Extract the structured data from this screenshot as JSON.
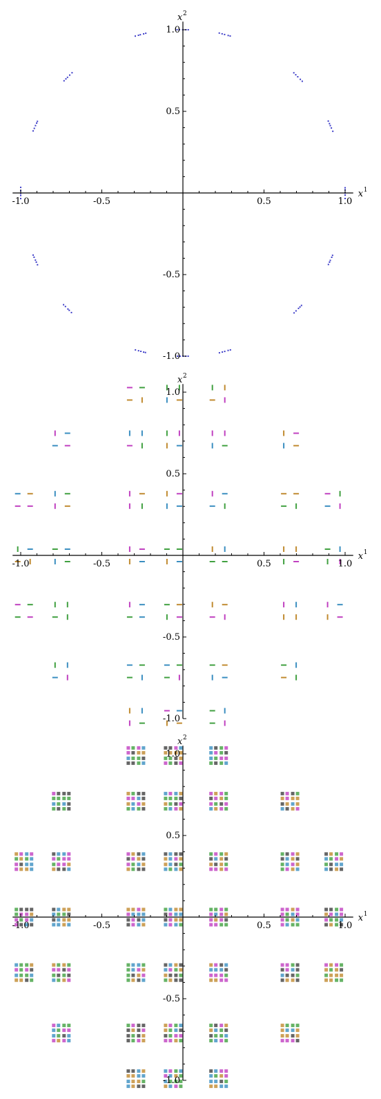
{
  "chart_data": [
    {
      "type": "scatter",
      "panel": 1,
      "title": "",
      "xlabel": "x",
      "xlabel_sup": "1",
      "ylabel": "x",
      "ylabel_sup": "2",
      "xlim": [
        -1.05,
        1.05
      ],
      "ylim": [
        -1.0,
        1.05
      ],
      "xticks": [
        -1.0,
        -0.5,
        0.5,
        1.0
      ],
      "xtick_labels": [
        "-1.0",
        "-0.5",
        "0.5",
        "1.0"
      ],
      "yticks": [
        -1.0,
        -0.5,
        0.5,
        1.0
      ],
      "ytick_labels": [
        "-1.0",
        "-0.5",
        "0.5",
        "1.0"
      ],
      "grid": false,
      "legend": "none",
      "colors": [
        "#3c3cc8"
      ],
      "description_key": "circle",
      "clusters": [
        {
          "x": 0.0,
          "y": 1.0
        },
        {
          "x": 0.26,
          "y": 0.97
        },
        {
          "x": -0.26,
          "y": 0.97
        },
        {
          "x": 0.71,
          "y": 0.71
        },
        {
          "x": -0.71,
          "y": 0.71
        },
        {
          "x": 0.91,
          "y": 0.41
        },
        {
          "x": -0.91,
          "y": 0.41
        },
        {
          "x": 1.0,
          "y": 0.0
        },
        {
          "x": -1.0,
          "y": 0.0
        },
        {
          "x": 0.91,
          "y": -0.41
        },
        {
          "x": -0.91,
          "y": -0.41
        },
        {
          "x": 0.71,
          "y": -0.71
        },
        {
          "x": -0.71,
          "y": -0.71
        },
        {
          "x": 0.26,
          "y": -0.97
        },
        {
          "x": -0.26,
          "y": -0.97
        },
        {
          "x": 0.0,
          "y": -1.0
        }
      ]
    },
    {
      "type": "scatter",
      "panel": 2,
      "title": "",
      "xlabel": "x",
      "xlabel_sup": "1",
      "ylabel": "x",
      "ylabel_sup": "2",
      "xlim": [
        -1.05,
        1.05
      ],
      "ylim": [
        -1.0,
        1.05
      ],
      "xticks": [
        -1.0,
        -0.5,
        0.5,
        1.0
      ],
      "xtick_labels": [
        "-1.0",
        "-0.5",
        "0.5",
        "1.0"
      ],
      "yticks": [
        -1.0,
        -0.5,
        0.5,
        1.0
      ],
      "ytick_labels": [
        "-1.0",
        "-0.5",
        "0.5",
        "1.0"
      ],
      "grid": false,
      "legend": "none",
      "colors": [
        "#c040c0",
        "#3a8ec0",
        "#40a040",
        "#c08a30"
      ],
      "x_centers": [
        -0.98,
        -0.75,
        -0.29,
        -0.06,
        0.22,
        0.66,
        0.93
      ],
      "y_centers": [
        0.99,
        0.71,
        0.34,
        0.0,
        -0.34,
        -0.71,
        -0.99
      ]
    },
    {
      "type": "scatter",
      "panel": 3,
      "title": "",
      "xlabel": "x",
      "xlabel_sup": "1",
      "ylabel": "x",
      "ylabel_sup": "2",
      "xlim": [
        -1.05,
        1.05
      ],
      "ylim": [
        -1.0,
        1.05
      ],
      "xticks": [
        -1.0,
        -0.5,
        0.5,
        1.0
      ],
      "xtick_labels": [
        "-1.0",
        "-0.5",
        "0.5",
        "1.0"
      ],
      "yticks": [
        -1.0,
        -0.5,
        0.5,
        1.0
      ],
      "ytick_labels": [
        "-1.0",
        "-0.5",
        "0.5",
        "1.0"
      ],
      "grid": false,
      "legend": "none",
      "colors": [
        "#c040c0",
        "#3a8ec0",
        "#40a040",
        "#c08a30",
        "#404040"
      ],
      "x_centers": [
        -0.98,
        -0.75,
        -0.29,
        -0.06,
        0.22,
        0.66,
        0.93
      ],
      "y_centers": [
        0.99,
        0.71,
        0.34,
        0.0,
        -0.34,
        -0.71,
        -0.99
      ]
    }
  ]
}
